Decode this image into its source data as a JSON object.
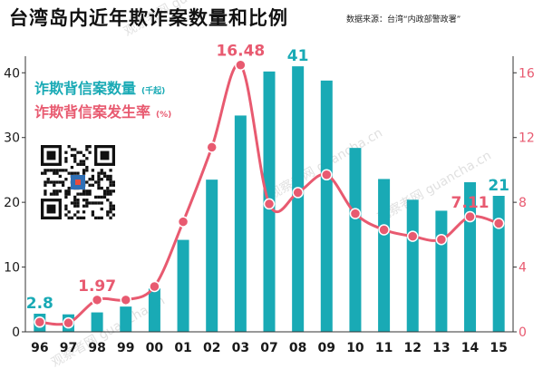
{
  "header": {
    "title": "台湾岛内近年欺诈案数量和比例",
    "source": "数据来源：台湾“内政部警政署”"
  },
  "legend": {
    "count_label": "诈欺背信案数量",
    "count_unit": "(千起)",
    "rate_label": "诈欺背信案发生率",
    "rate_unit": "(%)"
  },
  "watermark": "观察者网 guancha.cn",
  "colors": {
    "bar": "#19aab5",
    "line": "#e85a70",
    "title": "#111111",
    "axis_text": "#1a1a1a"
  },
  "chart_data": {
    "type": "bar",
    "title": "台湾岛内近年欺诈案数量和比例",
    "categories": [
      "96",
      "97",
      "98",
      "99",
      "00",
      "01",
      "02",
      "03",
      "07",
      "08",
      "09",
      "10",
      "11",
      "12",
      "13",
      "14",
      "15"
    ],
    "y_left": {
      "ylim": [
        0,
        42
      ],
      "ticks": [
        0,
        10,
        20,
        30,
        40
      ]
    },
    "y_right": {
      "ylim": [
        0,
        16.8
      ],
      "ticks": [
        0,
        4,
        8,
        12,
        16
      ]
    },
    "grid": false,
    "series": [
      {
        "name": "诈欺背信案数量",
        "unit": "千起",
        "type": "bar",
        "axis": "left",
        "values": [
          2.8,
          2.7,
          3.0,
          3.9,
          6.7,
          14.2,
          23.5,
          33.4,
          40.2,
          41,
          38.8,
          28.4,
          23.6,
          20.4,
          18.7,
          23.1,
          21
        ]
      },
      {
        "name": "诈欺背信案发生率",
        "unit": "%",
        "type": "line",
        "axis": "right",
        "values": [
          0.6,
          0.55,
          1.97,
          1.97,
          2.8,
          6.8,
          11.4,
          16.48,
          7.9,
          8.6,
          9.7,
          7.3,
          6.3,
          5.9,
          5.7,
          7.11,
          6.7
        ]
      }
    ],
    "annotations": [
      {
        "series": "诈欺背信案数量",
        "index": 0,
        "text": "2.8"
      },
      {
        "series": "诈欺背信案数量",
        "index": 9,
        "text": "41"
      },
      {
        "series": "诈欺背信案数量",
        "index": 16,
        "text": "21"
      },
      {
        "series": "诈欺背信案发生率",
        "index": 2,
        "text": "1.97"
      },
      {
        "series": "诈欺背信案发生率",
        "index": 7,
        "text": "16.48"
      },
      {
        "series": "诈欺背信案发生率",
        "index": 15,
        "text": "7.11"
      }
    ]
  }
}
